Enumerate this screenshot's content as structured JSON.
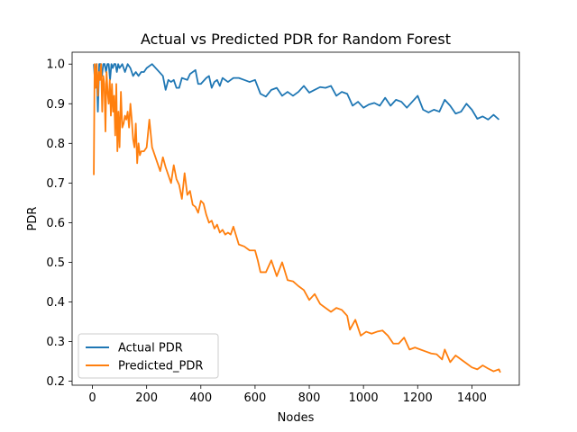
{
  "chart_data": {
    "type": "line",
    "title": "Actual vs Predicted PDR for Random Forest",
    "xlabel": "Nodes",
    "ylabel": "PDR",
    "xlim": [
      -75,
      1575
    ],
    "ylim": [
      0.19,
      1.03
    ],
    "xticks": [
      0,
      200,
      400,
      600,
      800,
      1000,
      1200,
      1400
    ],
    "yticks": [
      0.2,
      0.3,
      0.4,
      0.5,
      0.6,
      0.7,
      0.8,
      0.9,
      1.0
    ],
    "xtick_labels": [
      "0",
      "200",
      "400",
      "600",
      "800",
      "1000",
      "1200",
      "1400"
    ],
    "ytick_labels": [
      "0.2",
      "0.3",
      "0.4",
      "0.5",
      "0.6",
      "0.7",
      "0.8",
      "0.9",
      "1.0"
    ],
    "grid": false,
    "legend_position": "lower-left",
    "series": [
      {
        "name": "Actual PDR",
        "color": "#1f77b4",
        "points": [
          [
            5,
            1.0
          ],
          [
            10,
            0.95
          ],
          [
            15,
            1.0
          ],
          [
            20,
            0.88
          ],
          [
            25,
            1.0
          ],
          [
            30,
            1.0
          ],
          [
            35,
            0.97
          ],
          [
            40,
            1.0
          ],
          [
            45,
            1.0
          ],
          [
            50,
            0.98
          ],
          [
            55,
            1.0
          ],
          [
            60,
            1.0
          ],
          [
            65,
            0.96
          ],
          [
            70,
            1.0
          ],
          [
            75,
            0.99
          ],
          [
            80,
            1.0
          ],
          [
            85,
            1.0
          ],
          [
            90,
            0.98
          ],
          [
            95,
            1.0
          ],
          [
            100,
            0.99
          ],
          [
            110,
            1.0
          ],
          [
            120,
            0.98
          ],
          [
            130,
            1.0
          ],
          [
            140,
            0.99
          ],
          [
            150,
            0.97
          ],
          [
            160,
            0.98
          ],
          [
            170,
            0.97
          ],
          [
            180,
            0.98
          ],
          [
            190,
            0.98
          ],
          [
            200,
            0.99
          ],
          [
            220,
            1.0
          ],
          [
            240,
            0.985
          ],
          [
            260,
            0.97
          ],
          [
            270,
            0.935
          ],
          [
            280,
            0.96
          ],
          [
            290,
            0.955
          ],
          [
            300,
            0.96
          ],
          [
            310,
            0.94
          ],
          [
            320,
            0.94
          ],
          [
            330,
            0.965
          ],
          [
            350,
            0.96
          ],
          [
            360,
            0.975
          ],
          [
            380,
            0.985
          ],
          [
            390,
            0.95
          ],
          [
            400,
            0.95
          ],
          [
            420,
            0.965
          ],
          [
            430,
            0.97
          ],
          [
            440,
            0.94
          ],
          [
            450,
            0.955
          ],
          [
            460,
            0.96
          ],
          [
            470,
            0.945
          ],
          [
            480,
            0.965
          ],
          [
            500,
            0.955
          ],
          [
            520,
            0.965
          ],
          [
            540,
            0.965
          ],
          [
            560,
            0.96
          ],
          [
            580,
            0.955
          ],
          [
            600,
            0.96
          ],
          [
            620,
            0.925
          ],
          [
            640,
            0.918
          ],
          [
            660,
            0.935
          ],
          [
            680,
            0.94
          ],
          [
            700,
            0.92
          ],
          [
            720,
            0.93
          ],
          [
            740,
            0.92
          ],
          [
            760,
            0.93
          ],
          [
            780,
            0.945
          ],
          [
            800,
            0.928
          ],
          [
            820,
            0.935
          ],
          [
            840,
            0.942
          ],
          [
            860,
            0.94
          ],
          [
            880,
            0.945
          ],
          [
            900,
            0.92
          ],
          [
            920,
            0.93
          ],
          [
            940,
            0.925
          ],
          [
            960,
            0.895
          ],
          [
            980,
            0.905
          ],
          [
            1000,
            0.89
          ],
          [
            1020,
            0.898
          ],
          [
            1040,
            0.902
          ],
          [
            1060,
            0.895
          ],
          [
            1080,
            0.915
          ],
          [
            1100,
            0.895
          ],
          [
            1120,
            0.91
          ],
          [
            1140,
            0.905
          ],
          [
            1160,
            0.89
          ],
          [
            1180,
            0.905
          ],
          [
            1200,
            0.92
          ],
          [
            1220,
            0.885
          ],
          [
            1240,
            0.878
          ],
          [
            1260,
            0.885
          ],
          [
            1280,
            0.88
          ],
          [
            1300,
            0.91
          ],
          [
            1320,
            0.895
          ],
          [
            1340,
            0.875
          ],
          [
            1360,
            0.88
          ],
          [
            1380,
            0.9
          ],
          [
            1400,
            0.885
          ],
          [
            1420,
            0.862
          ],
          [
            1440,
            0.868
          ],
          [
            1460,
            0.86
          ],
          [
            1480,
            0.872
          ],
          [
            1500,
            0.86
          ]
        ]
      },
      {
        "name": "Predicted_PDR",
        "color": "#ff7f0e",
        "points": [
          [
            5,
            0.72
          ],
          [
            8,
            1.0
          ],
          [
            12,
            0.94
          ],
          [
            16,
            1.0
          ],
          [
            20,
            0.92
          ],
          [
            24,
            0.98
          ],
          [
            28,
            0.96
          ],
          [
            32,
            1.0
          ],
          [
            36,
            0.88
          ],
          [
            40,
            0.97
          ],
          [
            44,
            0.95
          ],
          [
            48,
            0.83
          ],
          [
            52,
            0.98
          ],
          [
            56,
            0.93
          ],
          [
            60,
            0.9
          ],
          [
            64,
            0.96
          ],
          [
            68,
            0.87
          ],
          [
            72,
            0.95
          ],
          [
            76,
            0.88
          ],
          [
            80,
            0.92
          ],
          [
            84,
            0.82
          ],
          [
            88,
            0.95
          ],
          [
            92,
            0.78
          ],
          [
            96,
            0.88
          ],
          [
            100,
            0.79
          ],
          [
            105,
            0.93
          ],
          [
            110,
            0.84
          ],
          [
            115,
            0.85
          ],
          [
            120,
            0.87
          ],
          [
            125,
            0.86
          ],
          [
            130,
            0.88
          ],
          [
            135,
            0.84
          ],
          [
            140,
            0.9
          ],
          [
            145,
            0.86
          ],
          [
            150,
            0.81
          ],
          [
            155,
            0.79
          ],
          [
            160,
            0.85
          ],
          [
            165,
            0.75
          ],
          [
            170,
            0.8
          ],
          [
            175,
            0.77
          ],
          [
            180,
            0.78
          ],
          [
            190,
            0.78
          ],
          [
            200,
            0.79
          ],
          [
            210,
            0.86
          ],
          [
            220,
            0.79
          ],
          [
            240,
            0.75
          ],
          [
            250,
            0.73
          ],
          [
            260,
            0.765
          ],
          [
            270,
            0.74
          ],
          [
            280,
            0.72
          ],
          [
            290,
            0.7
          ],
          [
            300,
            0.745
          ],
          [
            310,
            0.71
          ],
          [
            320,
            0.695
          ],
          [
            330,
            0.66
          ],
          [
            340,
            0.725
          ],
          [
            350,
            0.67
          ],
          [
            360,
            0.68
          ],
          [
            370,
            0.645
          ],
          [
            380,
            0.64
          ],
          [
            390,
            0.625
          ],
          [
            400,
            0.655
          ],
          [
            410,
            0.648
          ],
          [
            420,
            0.62
          ],
          [
            430,
            0.6
          ],
          [
            440,
            0.605
          ],
          [
            450,
            0.585
          ],
          [
            460,
            0.595
          ],
          [
            470,
            0.575
          ],
          [
            480,
            0.582
          ],
          [
            490,
            0.57
          ],
          [
            500,
            0.575
          ],
          [
            510,
            0.57
          ],
          [
            520,
            0.59
          ],
          [
            540,
            0.545
          ],
          [
            560,
            0.54
          ],
          [
            580,
            0.53
          ],
          [
            600,
            0.53
          ],
          [
            610,
            0.505
          ],
          [
            620,
            0.475
          ],
          [
            640,
            0.475
          ],
          [
            660,
            0.505
          ],
          [
            680,
            0.465
          ],
          [
            700,
            0.5
          ],
          [
            720,
            0.455
          ],
          [
            740,
            0.452
          ],
          [
            760,
            0.44
          ],
          [
            780,
            0.43
          ],
          [
            800,
            0.405
          ],
          [
            820,
            0.42
          ],
          [
            840,
            0.395
          ],
          [
            860,
            0.385
          ],
          [
            880,
            0.375
          ],
          [
            900,
            0.385
          ],
          [
            920,
            0.38
          ],
          [
            940,
            0.365
          ],
          [
            950,
            0.33
          ],
          [
            970,
            0.355
          ],
          [
            990,
            0.315
          ],
          [
            1010,
            0.325
          ],
          [
            1030,
            0.32
          ],
          [
            1050,
            0.325
          ],
          [
            1070,
            0.328
          ],
          [
            1090,
            0.315
          ],
          [
            1110,
            0.295
          ],
          [
            1130,
            0.295
          ],
          [
            1150,
            0.31
          ],
          [
            1170,
            0.28
          ],
          [
            1190,
            0.285
          ],
          [
            1210,
            0.28
          ],
          [
            1230,
            0.275
          ],
          [
            1250,
            0.27
          ],
          [
            1270,
            0.268
          ],
          [
            1290,
            0.255
          ],
          [
            1300,
            0.28
          ],
          [
            1320,
            0.248
          ],
          [
            1340,
            0.265
          ],
          [
            1360,
            0.255
          ],
          [
            1380,
            0.245
          ],
          [
            1400,
            0.235
          ],
          [
            1420,
            0.23
          ],
          [
            1440,
            0.24
          ],
          [
            1460,
            0.232
          ],
          [
            1480,
            0.225
          ],
          [
            1500,
            0.23
          ],
          [
            1505,
            0.222
          ]
        ]
      }
    ]
  }
}
